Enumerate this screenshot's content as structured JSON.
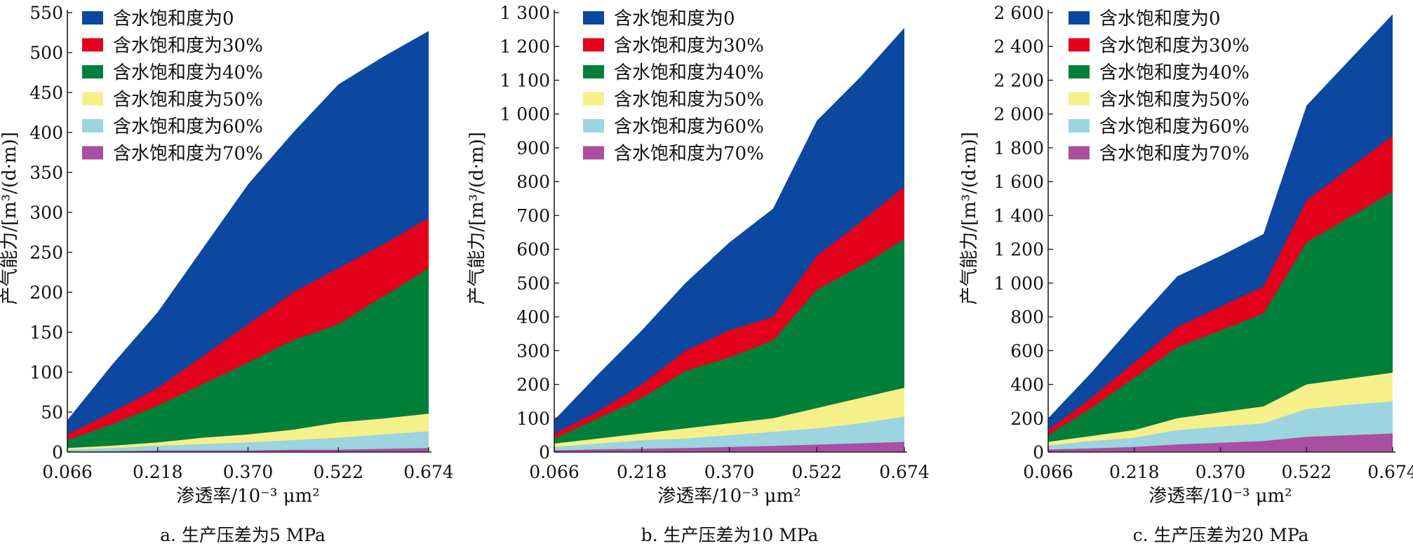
{
  "colors": {
    "sw0": "#0c47a0",
    "sw30": "#e3001b",
    "sw40": "#007f3b",
    "sw50": "#f6f08a",
    "sw60": "#9cd4e0",
    "sw70": "#a84f9f"
  },
  "chart_data": [
    {
      "type": "area",
      "caption": "a. 生产压差为5 MPa",
      "xlabel": "渗透率/10⁻³ μm²",
      "ylabel": "产气能力/[m³/(d·m)]",
      "xlim": [
        0.066,
        0.674
      ],
      "ylim": [
        0,
        550
      ],
      "x_ticks": [
        "0.066",
        "0.218",
        "0.370",
        "0.522",
        "0.674"
      ],
      "y_ticks": [
        "0",
        "50",
        "100",
        "150",
        "200",
        "250",
        "300",
        "350",
        "400",
        "450",
        "500",
        "550"
      ],
      "legend_position": "top-left",
      "x": [
        0.066,
        0.142,
        0.218,
        0.294,
        0.37,
        0.446,
        0.522,
        0.598,
        0.674
      ],
      "series": [
        {
          "name": "含水饱和度为0",
          "color_key": "sw0",
          "values": [
            40,
            110,
            175,
            255,
            335,
            400,
            460,
            495,
            527
          ]
        },
        {
          "name": "含水饱和度为30%",
          "color_key": "sw30",
          "values": [
            22,
            50,
            80,
            120,
            160,
            200,
            230,
            260,
            293
          ]
        },
        {
          "name": "含水饱和度为40%",
          "color_key": "sw40",
          "values": [
            15,
            35,
            58,
            85,
            112,
            140,
            160,
            195,
            230
          ]
        },
        {
          "name": "含水饱和度为50%",
          "color_key": "sw50",
          "values": [
            5,
            8,
            12,
            18,
            22,
            28,
            37,
            42,
            48
          ]
        },
        {
          "name": "含水饱和度为60%",
          "color_key": "sw60",
          "values": [
            3,
            5,
            8,
            10,
            12,
            15,
            18,
            22,
            26
          ]
        },
        {
          "name": "含水饱和度为70%",
          "color_key": "sw70",
          "values": [
            1,
            1,
            2,
            2,
            2,
            3,
            3,
            4,
            5
          ]
        }
      ]
    },
    {
      "type": "area",
      "caption": "b. 生产压差为10 MPa",
      "xlabel": "渗透率/10⁻³ μm²",
      "ylabel": "产气能力/[m³/(d·m)]",
      "xlim": [
        0.066,
        0.674
      ],
      "ylim": [
        0,
        1300
      ],
      "x_ticks": [
        "0.066",
        "0.218",
        "0.370",
        "0.522",
        "0.674"
      ],
      "y_ticks": [
        "0",
        "100",
        "200",
        "300",
        "400",
        "500",
        "600",
        "700",
        "800",
        "900",
        "1 000",
        "1 100",
        "1 200",
        "1 300"
      ],
      "legend_position": "top-left",
      "x": [
        0.066,
        0.142,
        0.218,
        0.294,
        0.37,
        0.446,
        0.522,
        0.598,
        0.674
      ],
      "series": [
        {
          "name": "含水饱和度为0",
          "color_key": "sw0",
          "values": [
            95,
            230,
            360,
            500,
            620,
            720,
            980,
            1110,
            1255
          ]
        },
        {
          "name": "含水饱和度为30%",
          "color_key": "sw30",
          "values": [
            55,
            120,
            200,
            300,
            360,
            400,
            580,
            680,
            785
          ]
        },
        {
          "name": "含水饱和度为40%",
          "color_key": "sw40",
          "values": [
            40,
            100,
            160,
            240,
            280,
            330,
            480,
            550,
            630
          ]
        },
        {
          "name": "含水饱和度为50%",
          "color_key": "sw50",
          "values": [
            25,
            40,
            55,
            70,
            85,
            100,
            130,
            160,
            190
          ]
        },
        {
          "name": "含水饱和度为60%",
          "color_key": "sw60",
          "values": [
            15,
            25,
            35,
            40,
            50,
            60,
            70,
            85,
            105
          ]
        },
        {
          "name": "含水饱和度为70%",
          "color_key": "sw70",
          "values": [
            5,
            8,
            10,
            12,
            15,
            18,
            22,
            26,
            30
          ]
        }
      ]
    },
    {
      "type": "area",
      "caption": "c. 生产压差为20 MPa",
      "xlabel": "渗透率/10⁻³ μm²",
      "ylabel": "产气能力/[m³/(d·m)]",
      "xlim": [
        0.066,
        0.674
      ],
      "ylim": [
        0,
        2600
      ],
      "x_ticks": [
        "0.066",
        "0.218",
        "0.370",
        "0.522",
        "0.674"
      ],
      "y_ticks": [
        "0",
        "200",
        "400",
        "600",
        "800",
        "1 000",
        "1 200",
        "1 400",
        "1 600",
        "1 800",
        "2 000",
        "2 200",
        "2 400",
        "2 600"
      ],
      "legend_position": "top-left",
      "x": [
        0.066,
        0.142,
        0.218,
        0.294,
        0.37,
        0.446,
        0.522,
        0.598,
        0.674
      ],
      "series": [
        {
          "name": "含水饱和度为0",
          "color_key": "sw0",
          "values": [
            200,
            470,
            760,
            1040,
            1160,
            1290,
            2050,
            2320,
            2590
          ]
        },
        {
          "name": "含水饱和度为30%",
          "color_key": "sw30",
          "values": [
            130,
            320,
            530,
            740,
            860,
            980,
            1490,
            1680,
            1870
          ]
        },
        {
          "name": "含水饱和度为40%",
          "color_key": "sw40",
          "values": [
            100,
            260,
            440,
            620,
            720,
            820,
            1240,
            1390,
            1540
          ]
        },
        {
          "name": "含水饱和度为50%",
          "color_key": "sw50",
          "values": [
            60,
            95,
            130,
            200,
            235,
            270,
            400,
            435,
            470
          ]
        },
        {
          "name": "含水饱和度为60%",
          "color_key": "sw60",
          "values": [
            40,
            65,
            85,
            130,
            150,
            170,
            255,
            280,
            300
          ]
        },
        {
          "name": "含水饱和度为70%",
          "color_key": "sw70",
          "values": [
            15,
            22,
            30,
            45,
            55,
            65,
            90,
            100,
            110
          ]
        }
      ]
    }
  ]
}
